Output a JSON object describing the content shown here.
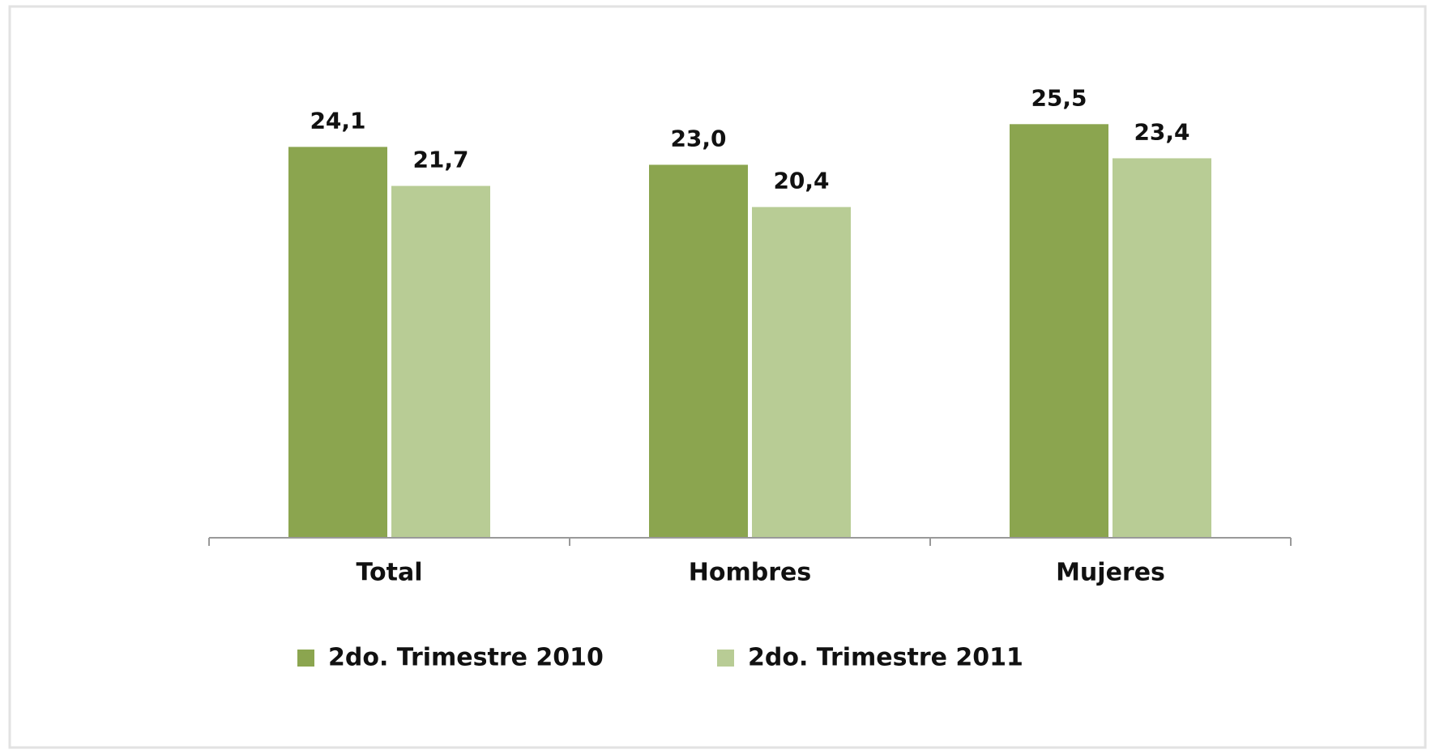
{
  "chart_data": {
    "type": "bar",
    "categories": [
      "Total",
      "Hombres",
      "Mujeres"
    ],
    "series": [
      {
        "name": "2do. Trimestre 2010",
        "color": "#8ba54f",
        "values": [
          24.1,
          23.0,
          25.5
        ],
        "value_labels": [
          "24,1",
          "23,0",
          "25,5"
        ]
      },
      {
        "name": "2do. Trimestre 2011",
        "color": "#b8cc95",
        "values": [
          21.7,
          20.4,
          23.4
        ],
        "value_labels": [
          "21,7",
          "20,4",
          "23,4"
        ]
      }
    ],
    "ylim": [
      0,
      30
    ],
    "legend": "bottom"
  }
}
